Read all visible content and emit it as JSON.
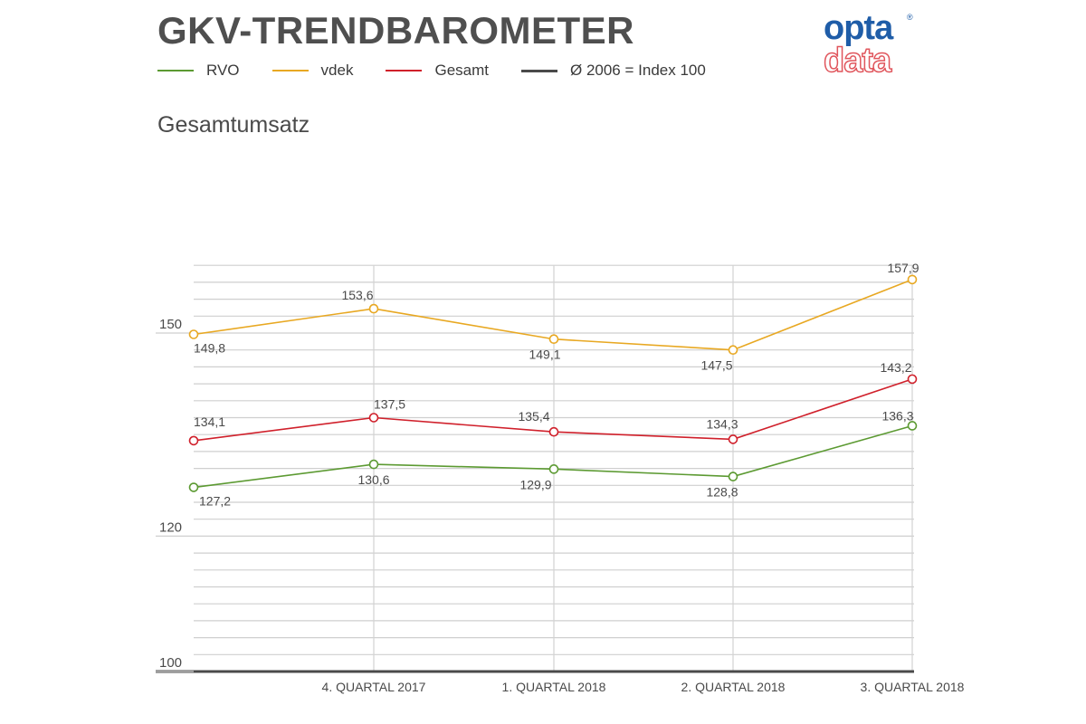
{
  "header": {
    "title": "GKV-TRENDBAROMETER",
    "subtitle": "Gesamtumsatz"
  },
  "logo": {
    "top": "opta",
    "registered": "®",
    "bottom": "data",
    "colors": {
      "top": "#1f5da8",
      "bottom": "#e0555c"
    }
  },
  "legend": [
    {
      "label": "RVO",
      "color": "#5c9a32"
    },
    {
      "label": "vdek",
      "color": "#e8a822"
    },
    {
      "label": "Gesamt",
      "color": "#d0202b"
    },
    {
      "label": "Ø 2006 = Index 100",
      "color": "#4a4a4a"
    }
  ],
  "chart_data": {
    "type": "line",
    "title": "Gesamtumsatz",
    "categories": [
      "",
      "4. QUARTAL 2017",
      "1. QUARTAL 2018",
      "2. QUARTAL 2018",
      "3. QUARTAL 2018"
    ],
    "x_tick_labels": [
      "4. QUARTAL 2017",
      "1. QUARTAL 2018",
      "2. QUARTAL 2018",
      "3. QUARTAL 2018"
    ],
    "y_tick_labels": [
      "150",
      "120",
      "100"
    ],
    "y_ticks": [
      150,
      120,
      100
    ],
    "ylim": [
      100,
      160
    ],
    "grid": true,
    "baseline": 100,
    "legend_position": "top-left",
    "series": [
      {
        "name": "vdek",
        "color": "#e8a822",
        "values": [
          149.8,
          153.6,
          149.1,
          147.5,
          157.9
        ],
        "labels": [
          "149,8",
          "153,6",
          "149,1",
          "147,5",
          "157,9"
        ]
      },
      {
        "name": "Gesamt",
        "color": "#d0202b",
        "values": [
          134.1,
          137.5,
          135.4,
          134.3,
          143.2
        ],
        "labels": [
          "134,1",
          "137,5",
          "135,4",
          "134,3",
          "143,2"
        ]
      },
      {
        "name": "RVO",
        "color": "#5c9a32",
        "values": [
          127.2,
          130.6,
          129.9,
          128.8,
          136.3
        ],
        "labels": [
          "127,2",
          "130,6",
          "129,9",
          "128,8",
          "136,3"
        ]
      }
    ]
  }
}
